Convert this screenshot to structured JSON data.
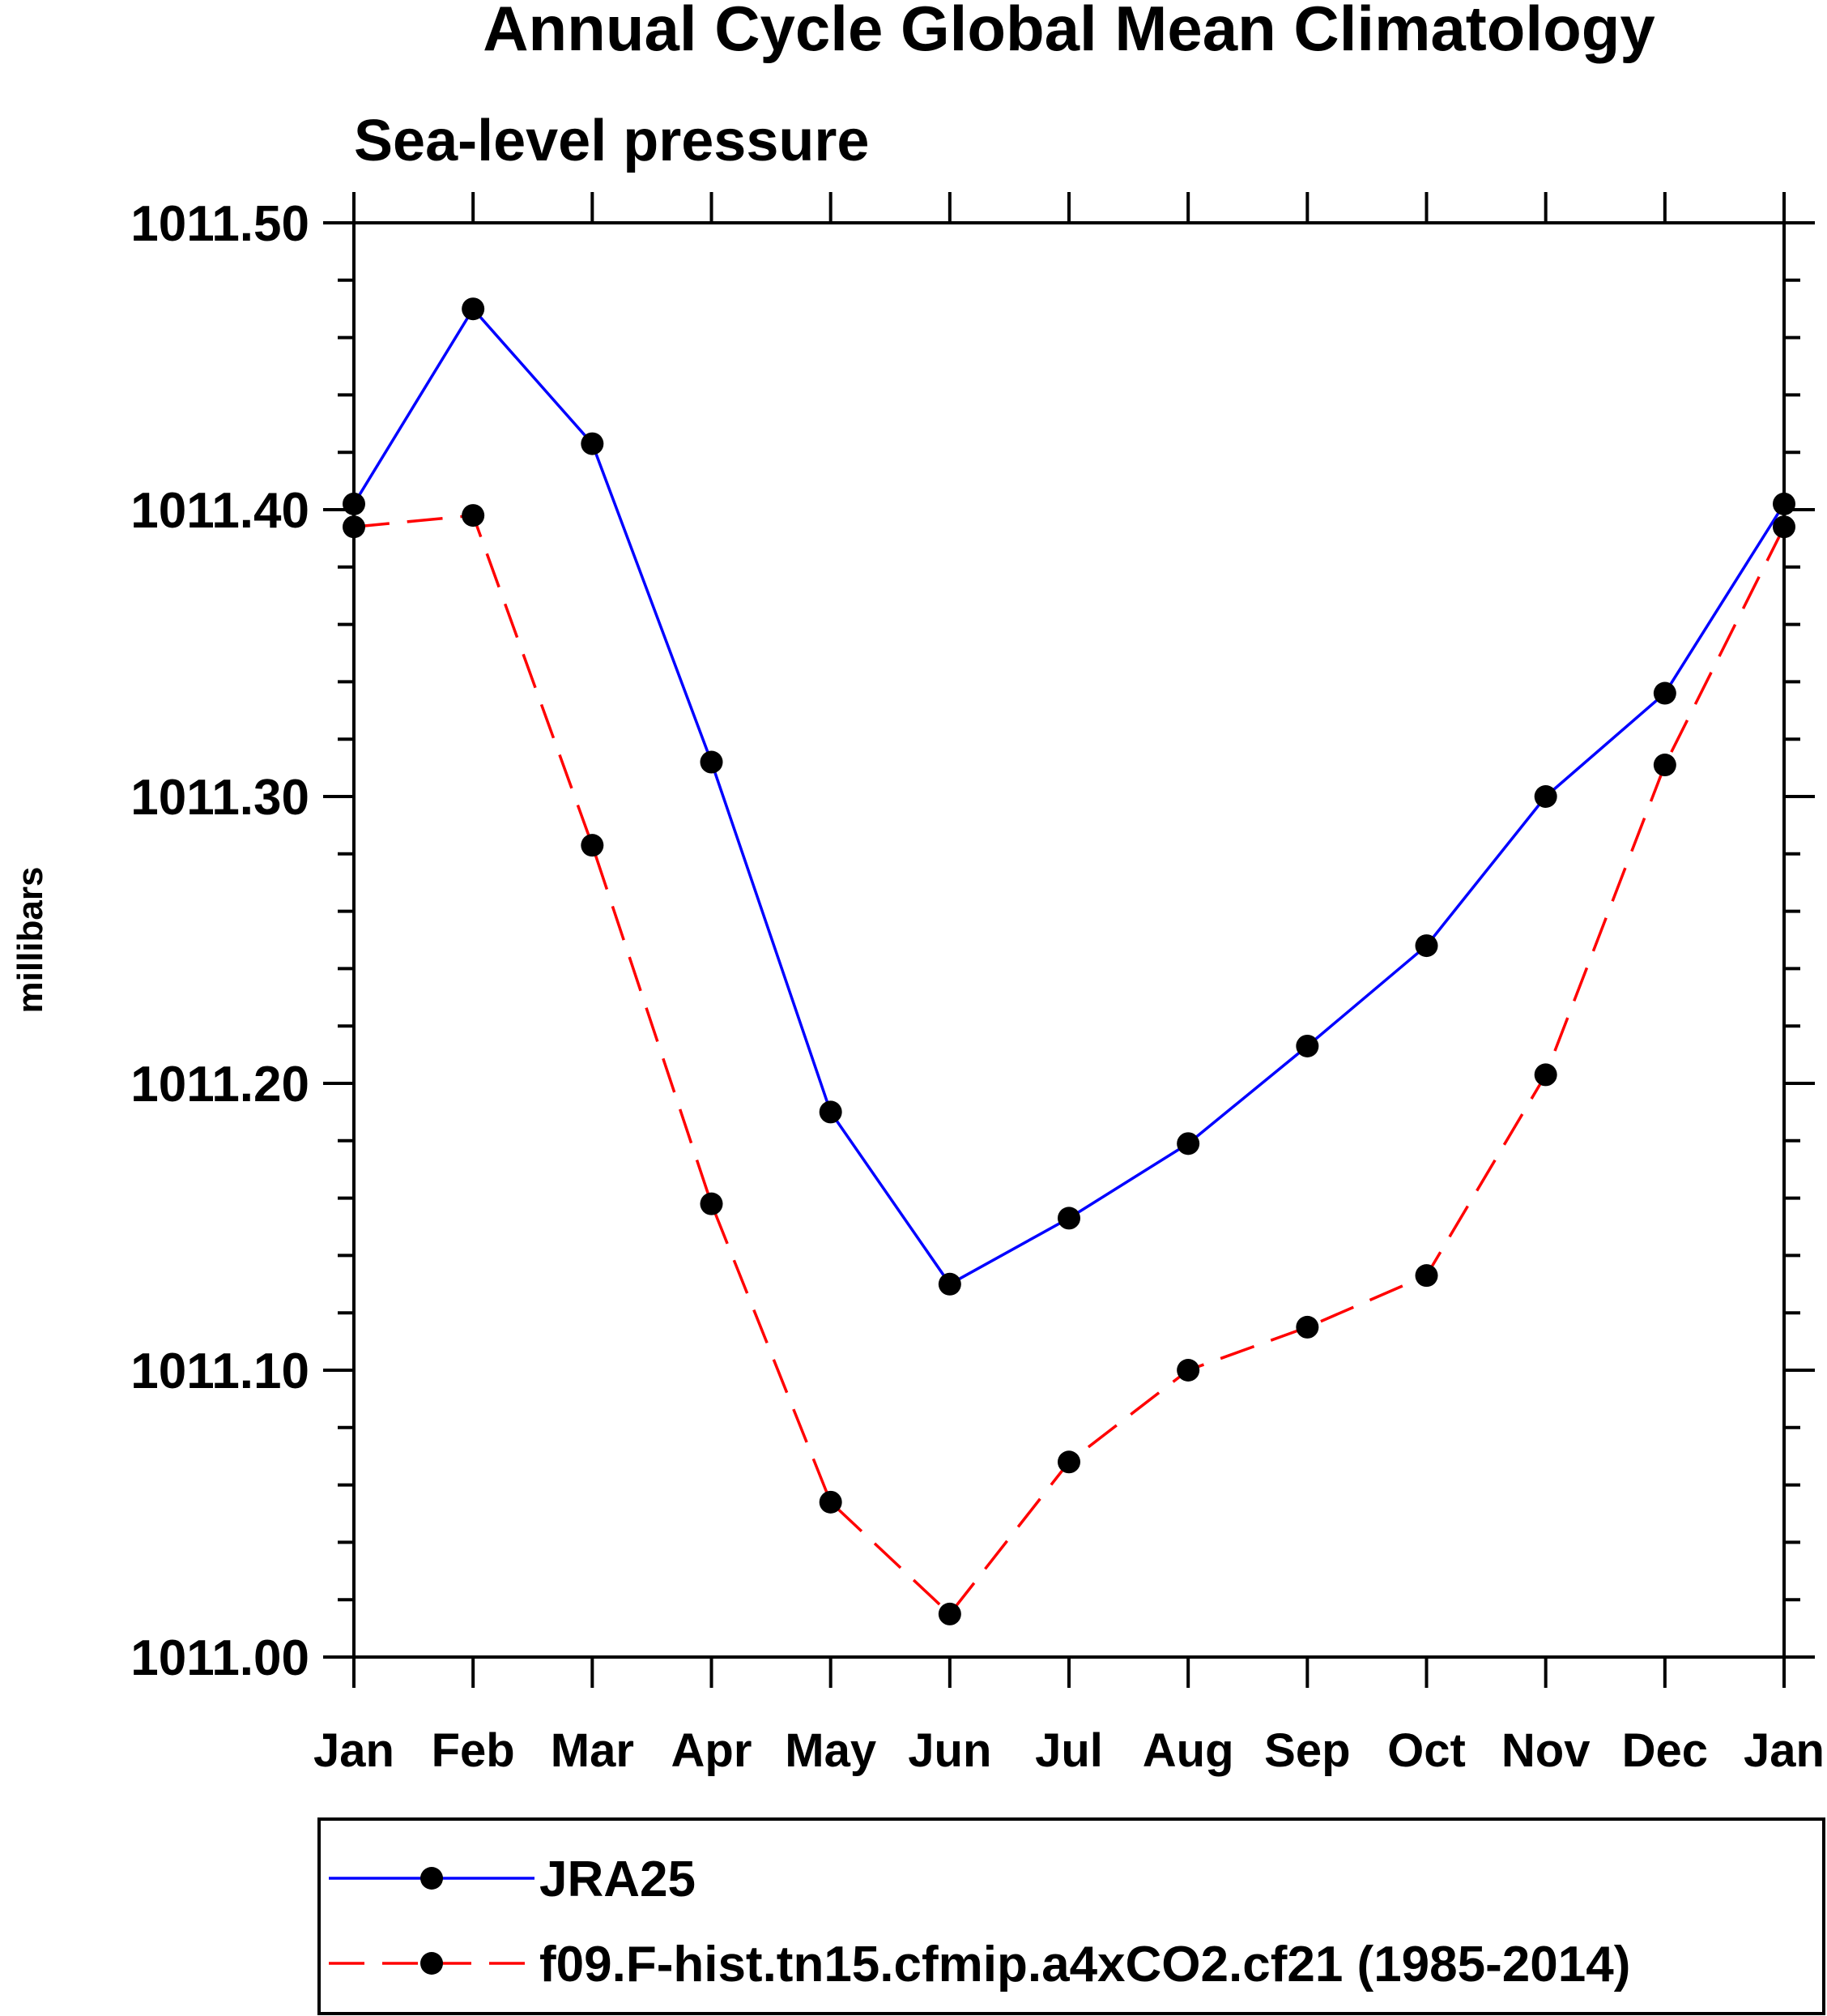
{
  "chart_data": {
    "type": "line",
    "title": "Annual Cycle Global Mean Climatology",
    "subtitle": "Sea-level pressure",
    "xlabel": "",
    "ylabel": "millibars",
    "categories": [
      "Jan",
      "Feb",
      "Mar",
      "Apr",
      "May",
      "Jun",
      "Jul",
      "Aug",
      "Sep",
      "Oct",
      "Nov",
      "Dec",
      "Jan"
    ],
    "ylim": [
      1011.0,
      1011.5
    ],
    "y_ticks": [
      "1011.00",
      "1011.10",
      "1011.20",
      "1011.30",
      "1011.40",
      "1011.50"
    ],
    "y_tick_values": [
      1011.0,
      1011.1,
      1011.2,
      1011.3,
      1011.4,
      1011.5
    ],
    "grid": false,
    "legend_position": "bottom",
    "series": [
      {
        "name": "JRA25",
        "color": "#0000ff",
        "line_style": "solid",
        "marker": "filled-circle",
        "values": [
          1011.402,
          1011.47,
          1011.423,
          1011.312,
          1011.19,
          1011.13,
          1011.153,
          1011.179,
          1011.213,
          1011.248,
          1011.3,
          1011.336,
          1011.402
        ]
      },
      {
        "name": "f09.F-hist.tn15.cfmip.a4xCO2.cf21 (1985-2014)",
        "color": "#ff0000",
        "line_style": "dashed",
        "marker": "filled-circle",
        "values": [
          1011.394,
          1011.398,
          1011.283,
          1011.158,
          1011.054,
          1011.015,
          1011.068,
          1011.1,
          1011.115,
          1011.133,
          1011.203,
          1011.311,
          1011.394
        ]
      }
    ]
  }
}
